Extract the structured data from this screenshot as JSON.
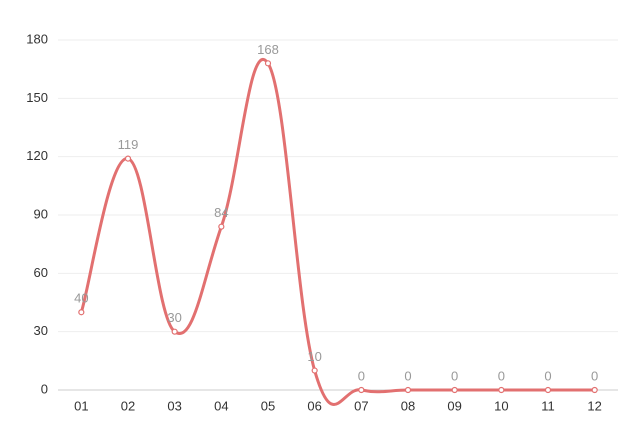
{
  "chart_data": {
    "type": "line",
    "categories": [
      "01",
      "02",
      "03",
      "04",
      "05",
      "06",
      "07",
      "08",
      "09",
      "10",
      "11",
      "12"
    ],
    "series": [
      {
        "color": "#e27070",
        "values": [
          40,
          119,
          30,
          84,
          168,
          10,
          0,
          0,
          0,
          0,
          0,
          0
        ]
      }
    ],
    "ylim": [
      0,
      180
    ],
    "yticks": [
      0,
      30,
      60,
      90,
      120,
      150,
      180
    ],
    "grid": true,
    "smooth": true
  }
}
